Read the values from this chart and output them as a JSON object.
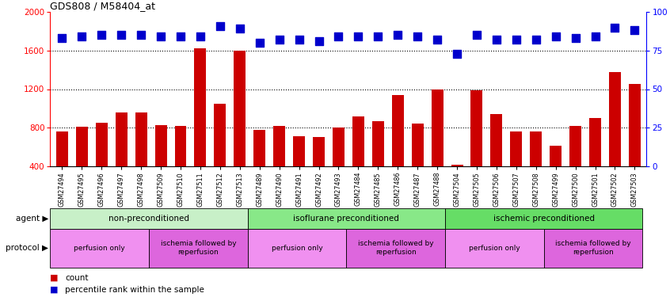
{
  "title": "GDS808 / M58404_at",
  "samples": [
    "GSM27494",
    "GSM27495",
    "GSM27496",
    "GSM27497",
    "GSM27498",
    "GSM27509",
    "GSM27510",
    "GSM27511",
    "GSM27512",
    "GSM27513",
    "GSM27489",
    "GSM27490",
    "GSM27491",
    "GSM27492",
    "GSM27493",
    "GSM27484",
    "GSM27485",
    "GSM27486",
    "GSM27487",
    "GSM27488",
    "GSM27504",
    "GSM27505",
    "GSM27506",
    "GSM27507",
    "GSM27508",
    "GSM27499",
    "GSM27500",
    "GSM27501",
    "GSM27502",
    "GSM27503"
  ],
  "counts": [
    760,
    810,
    850,
    960,
    960,
    830,
    820,
    1620,
    1050,
    1600,
    780,
    820,
    710,
    700,
    800,
    920,
    870,
    1140,
    840,
    1200,
    420,
    1190,
    940,
    760,
    760,
    610,
    820,
    900,
    1380,
    1250
  ],
  "percentiles": [
    83,
    84,
    85,
    85,
    85,
    84,
    84,
    84,
    91,
    89,
    80,
    82,
    82,
    81,
    84,
    84,
    84,
    85,
    84,
    82,
    73,
    85,
    82,
    82,
    82,
    84,
    83,
    84,
    90,
    88
  ],
  "bar_color": "#cc0000",
  "dot_color": "#0000cc",
  "ylim_left": [
    400,
    2000
  ],
  "ylim_right": [
    0,
    100
  ],
  "yticks_left": [
    400,
    800,
    1200,
    1600,
    2000
  ],
  "yticks_right": [
    0,
    25,
    50,
    75,
    100
  ],
  "grid_values": [
    800,
    1200,
    1600
  ],
  "agent_groups": [
    {
      "label": "non-preconditioned",
      "start": 0,
      "end": 10,
      "color": "#c8f0c8"
    },
    {
      "label": "isoflurane preconditioned",
      "start": 10,
      "end": 20,
      "color": "#88e888"
    },
    {
      "label": "ischemic preconditioned",
      "start": 20,
      "end": 30,
      "color": "#66dd66"
    }
  ],
  "protocol_groups": [
    {
      "label": "perfusion only",
      "start": 0,
      "end": 5,
      "color": "#f090f0"
    },
    {
      "label": "ischemia followed by\nreperfusion",
      "start": 5,
      "end": 10,
      "color": "#dd66dd"
    },
    {
      "label": "perfusion only",
      "start": 10,
      "end": 15,
      "color": "#f090f0"
    },
    {
      "label": "ischemia followed by\nreperfusion",
      "start": 15,
      "end": 20,
      "color": "#dd66dd"
    },
    {
      "label": "perfusion only",
      "start": 20,
      "end": 25,
      "color": "#f090f0"
    },
    {
      "label": "ischemia followed by\nreperfusion",
      "start": 25,
      "end": 30,
      "color": "#dd66dd"
    }
  ],
  "bar_width": 0.6,
  "dot_size": 45,
  "background_color": "#ffffff"
}
